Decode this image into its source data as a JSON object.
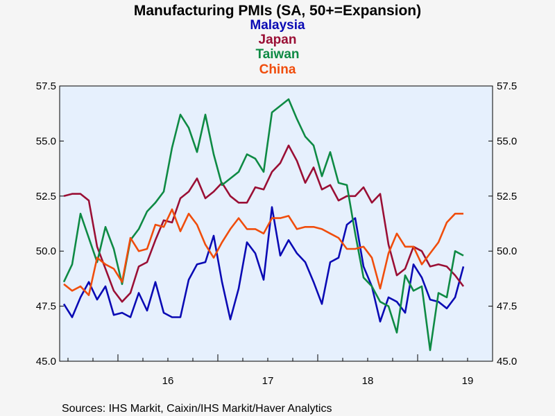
{
  "chart_data": {
    "type": "line",
    "title": "Manufacturing PMIs (SA, 50+=Expansion)",
    "ylim": [
      45.0,
      57.5
    ],
    "yticks": [
      "45.0",
      "47.5",
      "50.0",
      "52.5",
      "55.0",
      "57.5"
    ],
    "xticks": [
      "16",
      "17",
      "18",
      "19"
    ],
    "x_start": "2015-06",
    "x_end": "2019-09",
    "grid": false,
    "source": "Sources:  IHS Markit, Caixin/IHS Markit/Haver Analytics",
    "series": [
      {
        "name": "Malaysia",
        "color": "#0a0ab4",
        "values": [
          47.6,
          47.0,
          47.9,
          48.6,
          47.8,
          48.4,
          47.1,
          47.2,
          47.0,
          48.1,
          47.3,
          48.6,
          47.2,
          47.0,
          47.0,
          48.7,
          49.4,
          49.5,
          50.7,
          48.6,
          46.9,
          48.3,
          50.4,
          49.9,
          48.7,
          52.0,
          49.8,
          50.5,
          49.9,
          49.5,
          48.6,
          47.6,
          49.5,
          49.7,
          51.2,
          51.5,
          49.3,
          48.4,
          46.8,
          47.9,
          47.7,
          47.2,
          49.4,
          48.8,
          47.8,
          47.7,
          47.4,
          47.9,
          49.3
        ]
      },
      {
        "name": "Japan",
        "color": "#9a0f35",
        "values": [
          52.5,
          52.6,
          52.6,
          52.3,
          50.2,
          49.2,
          48.2,
          47.7,
          48.1,
          49.3,
          49.5,
          50.5,
          51.4,
          51.3,
          52.4,
          52.7,
          53.3,
          52.4,
          52.7,
          53.1,
          52.5,
          52.2,
          52.2,
          52.9,
          52.8,
          53.6,
          54.0,
          54.8,
          54.1,
          53.1,
          53.8,
          52.8,
          53.0,
          52.3,
          52.5,
          52.5,
          52.9,
          52.2,
          52.6,
          50.3,
          48.9,
          49.2,
          50.2,
          50.0,
          49.3,
          49.4,
          49.3,
          48.9,
          48.4
        ]
      },
      {
        "name": "Taiwan",
        "color": "#0e8a44",
        "values": [
          48.6,
          49.4,
          51.7,
          50.6,
          49.5,
          51.1,
          50.1,
          48.5,
          50.5,
          51.0,
          51.8,
          52.2,
          52.7,
          54.7,
          56.2,
          55.6,
          54.5,
          56.2,
          54.4,
          53.0,
          53.3,
          53.6,
          54.4,
          54.2,
          53.6,
          56.3,
          56.6,
          56.9,
          56.0,
          55.2,
          54.8,
          53.4,
          54.5,
          53.1,
          53.0,
          50.8,
          48.8,
          48.4,
          47.7,
          47.5,
          46.3,
          48.9,
          48.2,
          48.4,
          45.5,
          48.1,
          47.9,
          50.0,
          49.8
        ]
      },
      {
        "name": "China",
        "color": "#f04d0c",
        "values": [
          48.5,
          48.2,
          48.4,
          48.0,
          49.7,
          49.4,
          49.2,
          48.6,
          50.6,
          50.0,
          50.1,
          51.2,
          51.1,
          51.9,
          50.9,
          51.7,
          51.2,
          50.3,
          49.7,
          50.4,
          51.0,
          51.5,
          51.0,
          51.0,
          50.8,
          51.5,
          51.5,
          51.6,
          51.0,
          51.1,
          51.1,
          51.0,
          50.8,
          50.6,
          50.1,
          50.1,
          50.2,
          49.7,
          48.3,
          49.9,
          50.8,
          50.2,
          50.2,
          49.4,
          49.9,
          50.4,
          51.3,
          51.7,
          51.7
        ]
      }
    ]
  }
}
